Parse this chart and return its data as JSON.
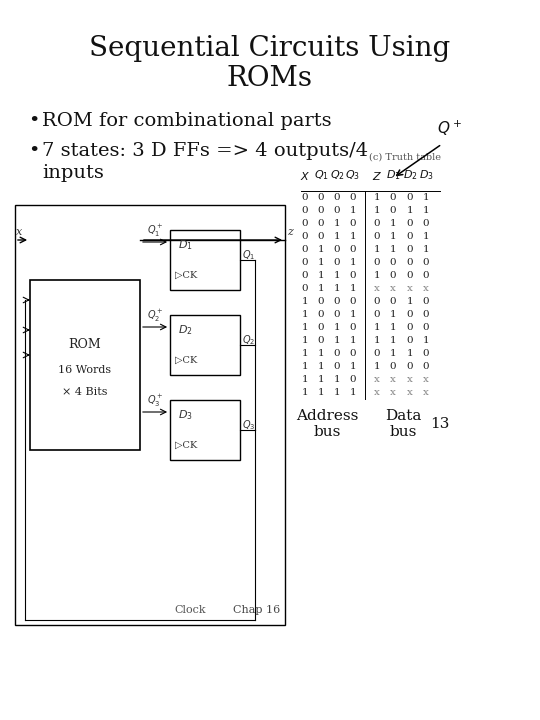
{
  "title_line1": "Sequential Circuits Using",
  "title_line2": "ROMs",
  "bullet1": "ROM for combinational parts",
  "bullet2a": "7 states: 3 D FFs => 4 outputs/4",
  "bullet2b": "inputs",
  "bg_color": "#ffffff",
  "truth_table_caption": "(c) Truth table",
  "qplus": "Q+",
  "truth_table_rows": [
    [
      "0",
      "0",
      "0",
      "0",
      "1",
      "0",
      "0",
      "1"
    ],
    [
      "0",
      "0",
      "0",
      "1",
      "1",
      "0",
      "1",
      "1"
    ],
    [
      "0",
      "0",
      "1",
      "0",
      "0",
      "1",
      "0",
      "0"
    ],
    [
      "0",
      "0",
      "1",
      "1",
      "0",
      "1",
      "0",
      "1"
    ],
    [
      "0",
      "1",
      "0",
      "0",
      "1",
      "1",
      "0",
      "1"
    ],
    [
      "0",
      "1",
      "0",
      "1",
      "0",
      "0",
      "0",
      "0"
    ],
    [
      "0",
      "1",
      "1",
      "0",
      "1",
      "0",
      "0",
      "0"
    ],
    [
      "0",
      "1",
      "1",
      "1",
      "x",
      "x",
      "x",
      "x"
    ],
    [
      "1",
      "0",
      "0",
      "0",
      "0",
      "0",
      "1",
      "0"
    ],
    [
      "1",
      "0",
      "0",
      "1",
      "0",
      "1",
      "0",
      "0"
    ],
    [
      "1",
      "0",
      "1",
      "0",
      "1",
      "1",
      "0",
      "0"
    ],
    [
      "1",
      "0",
      "1",
      "1",
      "1",
      "1",
      "0",
      "1"
    ],
    [
      "1",
      "1",
      "0",
      "0",
      "0",
      "1",
      "1",
      "0"
    ],
    [
      "1",
      "1",
      "0",
      "1",
      "1",
      "0",
      "0",
      "0"
    ],
    [
      "1",
      "1",
      "1",
      "0",
      "x",
      "x",
      "x",
      "x"
    ],
    [
      "1",
      "1",
      "1",
      "1",
      "x",
      "x",
      "x",
      "x"
    ]
  ],
  "footer_addr": "Address",
  "footer_bus1": "bus",
  "footer_data": "Data",
  "footer_bus2": "bus",
  "footer_num": "13",
  "chap": "Chap 16"
}
